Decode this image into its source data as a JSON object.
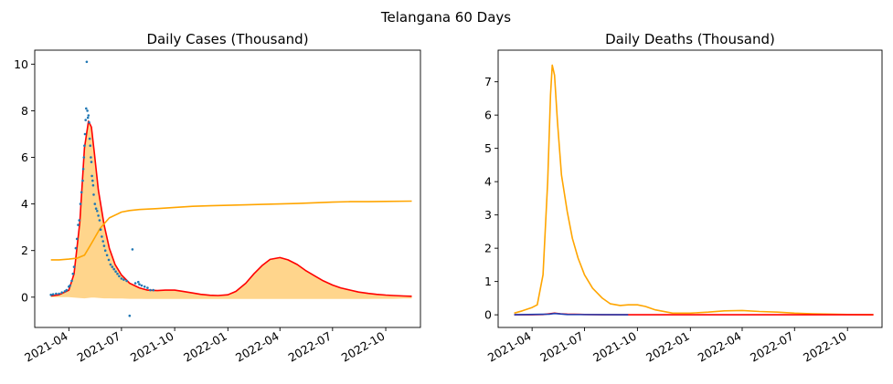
{
  "suptitle": "Telangana 60 Days",
  "chart_data": [
    {
      "type": "line",
      "title": "Daily Cases (Thousand)",
      "xlabel": "",
      "ylabel": "",
      "x_range": [
        "2021-02-01",
        "2022-11-30"
      ],
      "ylim": [
        -1.3,
        10.6
      ],
      "yticks": [
        0,
        2,
        4,
        6,
        8,
        10
      ],
      "xticks": [
        "2021-04",
        "2021-07",
        "2021-10",
        "2022-01",
        "2022-04",
        "2022-07",
        "2022-10"
      ],
      "grid": false,
      "legend": "none",
      "colors": {
        "fit": "#ff0000",
        "bound": "#ffa500",
        "band": "#ffd080",
        "observed": "#1f77b4"
      },
      "series": [
        {
          "style": "line",
          "color": "#ff0000",
          "x": [
            "2021-03-01",
            "2021-03-15",
            "2021-04-01",
            "2021-04-10",
            "2021-04-20",
            "2021-04-28",
            "2021-05-05",
            "2021-05-10",
            "2021-05-15",
            "2021-05-22",
            "2021-06-01",
            "2021-06-10",
            "2021-06-20",
            "2021-07-01",
            "2021-07-15",
            "2021-08-01",
            "2021-08-15",
            "2021-09-01",
            "2021-09-15",
            "2021-10-01",
            "2021-10-15",
            "2021-11-01",
            "2021-11-15",
            "2021-12-01",
            "2021-12-15",
            "2022-01-01",
            "2022-01-15",
            "2022-02-01",
            "2022-02-15",
            "2022-03-01",
            "2022-03-15",
            "2022-04-01",
            "2022-04-15",
            "2022-05-01",
            "2022-05-15",
            "2022-06-01",
            "2022-06-15",
            "2022-07-01",
            "2022-07-15",
            "2022-08-01",
            "2022-08-15",
            "2022-09-01",
            "2022-09-15",
            "2022-10-01",
            "2022-10-15",
            "2022-11-01",
            "2022-11-15"
          ],
          "y": [
            0.05,
            0.1,
            0.3,
            1.0,
            3.2,
            6.4,
            7.55,
            7.3,
            6.2,
            4.6,
            3.1,
            2.1,
            1.4,
            0.95,
            0.6,
            0.4,
            0.3,
            0.28,
            0.3,
            0.3,
            0.25,
            0.18,
            0.12,
            0.08,
            0.07,
            0.1,
            0.25,
            0.6,
            1.0,
            1.35,
            1.62,
            1.7,
            1.6,
            1.4,
            1.15,
            0.9,
            0.7,
            0.52,
            0.4,
            0.3,
            0.22,
            0.16,
            0.12,
            0.09,
            0.07,
            0.05,
            0.04
          ]
        },
        {
          "style": "line",
          "color": "#ffa500",
          "x": [
            "2021-03-01",
            "2021-03-15",
            "2021-04-01",
            "2021-04-15",
            "2021-04-28",
            "2021-05-10",
            "2021-05-25",
            "2021-06-10",
            "2021-07-01",
            "2021-07-15",
            "2021-08-01",
            "2021-09-01",
            "2021-10-01",
            "2021-11-01",
            "2021-12-01",
            "2022-01-01",
            "2022-02-01",
            "2022-03-01",
            "2022-04-01",
            "2022-05-01",
            "2022-06-01",
            "2022-07-01",
            "2022-08-01",
            "2022-09-01",
            "2022-10-01",
            "2022-11-15"
          ],
          "y": [
            1.6,
            1.6,
            1.63,
            1.67,
            1.8,
            2.3,
            2.95,
            3.4,
            3.65,
            3.72,
            3.76,
            3.8,
            3.85,
            3.9,
            3.92,
            3.94,
            3.96,
            3.98,
            4.0,
            4.02,
            4.05,
            4.08,
            4.1,
            4.1,
            4.11,
            4.12
          ]
        },
        {
          "style": "band",
          "color": "#ffd080",
          "x": [
            "2021-03-01",
            "2021-03-15",
            "2021-04-01",
            "2021-04-10",
            "2021-04-20",
            "2021-04-28",
            "2021-05-05",
            "2021-05-10",
            "2021-05-15",
            "2021-05-22",
            "2021-06-01",
            "2021-06-10",
            "2021-06-20",
            "2021-07-01",
            "2021-07-15",
            "2021-08-01",
            "2021-08-15",
            "2021-09-01",
            "2021-09-15",
            "2021-10-01",
            "2021-10-15",
            "2021-11-01",
            "2021-11-15",
            "2021-12-01",
            "2021-12-15",
            "2022-01-01",
            "2022-01-15",
            "2022-02-01",
            "2022-02-15",
            "2022-03-01",
            "2022-03-15",
            "2022-04-01",
            "2022-04-15",
            "2022-05-01",
            "2022-05-15",
            "2022-06-01",
            "2022-06-15",
            "2022-07-01",
            "2022-07-15",
            "2022-08-01",
            "2022-08-15",
            "2022-09-01",
            "2022-09-15",
            "2022-10-01",
            "2022-10-15",
            "2022-11-01",
            "2022-11-15"
          ],
          "upper": [
            0.05,
            0.1,
            0.3,
            1.0,
            3.2,
            6.4,
            7.55,
            7.3,
            6.2,
            4.6,
            3.1,
            2.1,
            1.4,
            0.95,
            0.6,
            0.4,
            0.3,
            0.28,
            0.3,
            0.3,
            0.25,
            0.18,
            0.12,
            0.08,
            0.07,
            0.1,
            0.25,
            0.6,
            1.0,
            1.35,
            1.62,
            1.7,
            1.6,
            1.4,
            1.15,
            0.9,
            0.7,
            0.52,
            0.4,
            0.3,
            0.22,
            0.16,
            0.12,
            0.09,
            0.07,
            0.05,
            0.04
          ],
          "lower": [
            0,
            0,
            0,
            -0.02,
            -0.04,
            -0.05,
            -0.03,
            -0.02,
            -0.02,
            -0.03,
            -0.05,
            -0.05,
            -0.06,
            -0.06,
            -0.07,
            -0.07,
            -0.08,
            -0.08,
            -0.08,
            -0.08,
            -0.08,
            -0.08,
            -0.08,
            -0.08,
            -0.08,
            -0.08,
            -0.08,
            -0.08,
            -0.08,
            -0.08,
            -0.08,
            -0.08,
            -0.08,
            -0.08,
            -0.08,
            -0.08,
            -0.08,
            -0.08,
            -0.08,
            -0.08,
            -0.08,
            -0.08,
            -0.07,
            -0.07,
            -0.07,
            -0.06,
            -0.06
          ]
        },
        {
          "style": "scatter",
          "color": "#1f77b4",
          "x": [
            "2021-03-01",
            "2021-03-05",
            "2021-03-10",
            "2021-03-15",
            "2021-03-20",
            "2021-03-25",
            "2021-03-28",
            "2021-04-01",
            "2021-04-03",
            "2021-04-06",
            "2021-04-08",
            "2021-04-10",
            "2021-04-13",
            "2021-04-15",
            "2021-04-17",
            "2021-04-19",
            "2021-04-21",
            "2021-04-23",
            "2021-04-25",
            "2021-04-26",
            "2021-04-27",
            "2021-04-28",
            "2021-04-29",
            "2021-04-30",
            "2021-05-01",
            "2021-05-02",
            "2021-05-03",
            "2021-05-04",
            "2021-05-05",
            "2021-05-06",
            "2021-05-07",
            "2021-05-08",
            "2021-05-09",
            "2021-05-10",
            "2021-05-11",
            "2021-05-12",
            "2021-05-13",
            "2021-05-14",
            "2021-05-16",
            "2021-05-18",
            "2021-05-20",
            "2021-05-22",
            "2021-05-24",
            "2021-05-26",
            "2021-05-28",
            "2021-05-30",
            "2021-06-01",
            "2021-06-03",
            "2021-06-06",
            "2021-06-09",
            "2021-06-12",
            "2021-06-15",
            "2021-06-18",
            "2021-06-21",
            "2021-06-24",
            "2021-06-27",
            "2021-07-01",
            "2021-07-05",
            "2021-07-10",
            "2021-07-15",
            "2021-07-20",
            "2021-07-25",
            "2021-07-30",
            "2021-08-01",
            "2021-08-05",
            "2021-08-10",
            "2021-08-15",
            "2021-08-20",
            "2021-08-25"
          ],
          "y": [
            0.1,
            0.12,
            0.15,
            0.15,
            0.2,
            0.25,
            0.3,
            0.45,
            0.5,
            0.7,
            1.0,
            1.3,
            2.1,
            2.5,
            3.1,
            3.3,
            4.0,
            4.5,
            5.0,
            5.5,
            6.0,
            6.5,
            7.0,
            7.6,
            8.1,
            10.1,
            8.0,
            7.7,
            7.8,
            7.5,
            6.8,
            6.5,
            6.0,
            5.8,
            5.2,
            5.0,
            4.8,
            4.4,
            4.0,
            3.8,
            3.7,
            3.5,
            3.3,
            2.9,
            2.6,
            2.4,
            2.2,
            2.0,
            1.8,
            1.6,
            1.4,
            1.3,
            1.2,
            1.1,
            1.0,
            0.9,
            0.8,
            0.75,
            0.7,
            -0.8,
            2.05,
            0.6,
            0.65,
            0.55,
            0.5,
            0.45,
            0.4,
            0.3,
            0.3
          ]
        }
      ]
    },
    {
      "type": "line",
      "title": "Daily Deaths (Thousand)",
      "xlabel": "",
      "ylabel": "",
      "x_range": [
        "2021-02-01",
        "2022-11-30"
      ],
      "ylim": [
        -0.38,
        7.95
      ],
      "yticks": [
        0,
        1,
        2,
        3,
        4,
        5,
        6,
        7
      ],
      "xticks": [
        "2021-04",
        "2021-07",
        "2021-10",
        "2022-01",
        "2022-04",
        "2022-07",
        "2022-10"
      ],
      "grid": false,
      "legend": "none",
      "colors": {
        "fit": "#ff0000",
        "bound": "#ffa500",
        "observed": "#1f77b4"
      },
      "series": [
        {
          "style": "line",
          "color": "#ffa500",
          "x": [
            "2021-03-01",
            "2021-03-15",
            "2021-04-01",
            "2021-04-10",
            "2021-04-20",
            "2021-04-28",
            "2021-05-03",
            "2021-05-06",
            "2021-05-10",
            "2021-05-15",
            "2021-05-22",
            "2021-06-01",
            "2021-06-10",
            "2021-06-20",
            "2021-07-01",
            "2021-07-15",
            "2021-08-01",
            "2021-08-15",
            "2021-09-01",
            "2021-09-15",
            "2021-10-01",
            "2021-10-15",
            "2021-11-01",
            "2021-12-01",
            "2022-01-01",
            "2022-02-01",
            "2022-03-01",
            "2022-04-01",
            "2022-05-01",
            "2022-06-01",
            "2022-07-01",
            "2022-08-01",
            "2022-09-01",
            "2022-10-01",
            "2022-11-15"
          ],
          "y": [
            0.05,
            0.12,
            0.22,
            0.3,
            1.2,
            4.0,
            6.6,
            7.5,
            7.2,
            5.8,
            4.2,
            3.1,
            2.3,
            1.7,
            1.2,
            0.8,
            0.5,
            0.33,
            0.28,
            0.3,
            0.3,
            0.25,
            0.15,
            0.05,
            0.05,
            0.08,
            0.12,
            0.13,
            0.1,
            0.08,
            0.05,
            0.03,
            0.02,
            0.01,
            0.0
          ]
        },
        {
          "style": "line",
          "color": "#ff0000",
          "x": [
            "2021-03-01",
            "2021-04-01",
            "2021-04-20",
            "2021-05-01",
            "2021-05-10",
            "2021-05-20",
            "2021-06-01",
            "2021-07-01",
            "2021-08-01",
            "2021-09-01",
            "2021-10-01",
            "2021-12-01",
            "2022-03-01",
            "2022-06-01",
            "2022-09-01",
            "2022-11-15"
          ],
          "y": [
            0.0,
            0.0,
            0.01,
            0.03,
            0.05,
            0.03,
            0.02,
            0.01,
            0.0,
            0.0,
            0.0,
            0.0,
            0.0,
            0.0,
            0.0,
            0.0
          ]
        },
        {
          "style": "line",
          "color": "#1f3fb4",
          "x": [
            "2021-03-01",
            "2021-05-01",
            "2021-05-10",
            "2021-06-01",
            "2021-09-15"
          ],
          "y": [
            0.0,
            0.02,
            0.04,
            0.01,
            0.0
          ]
        }
      ]
    }
  ]
}
